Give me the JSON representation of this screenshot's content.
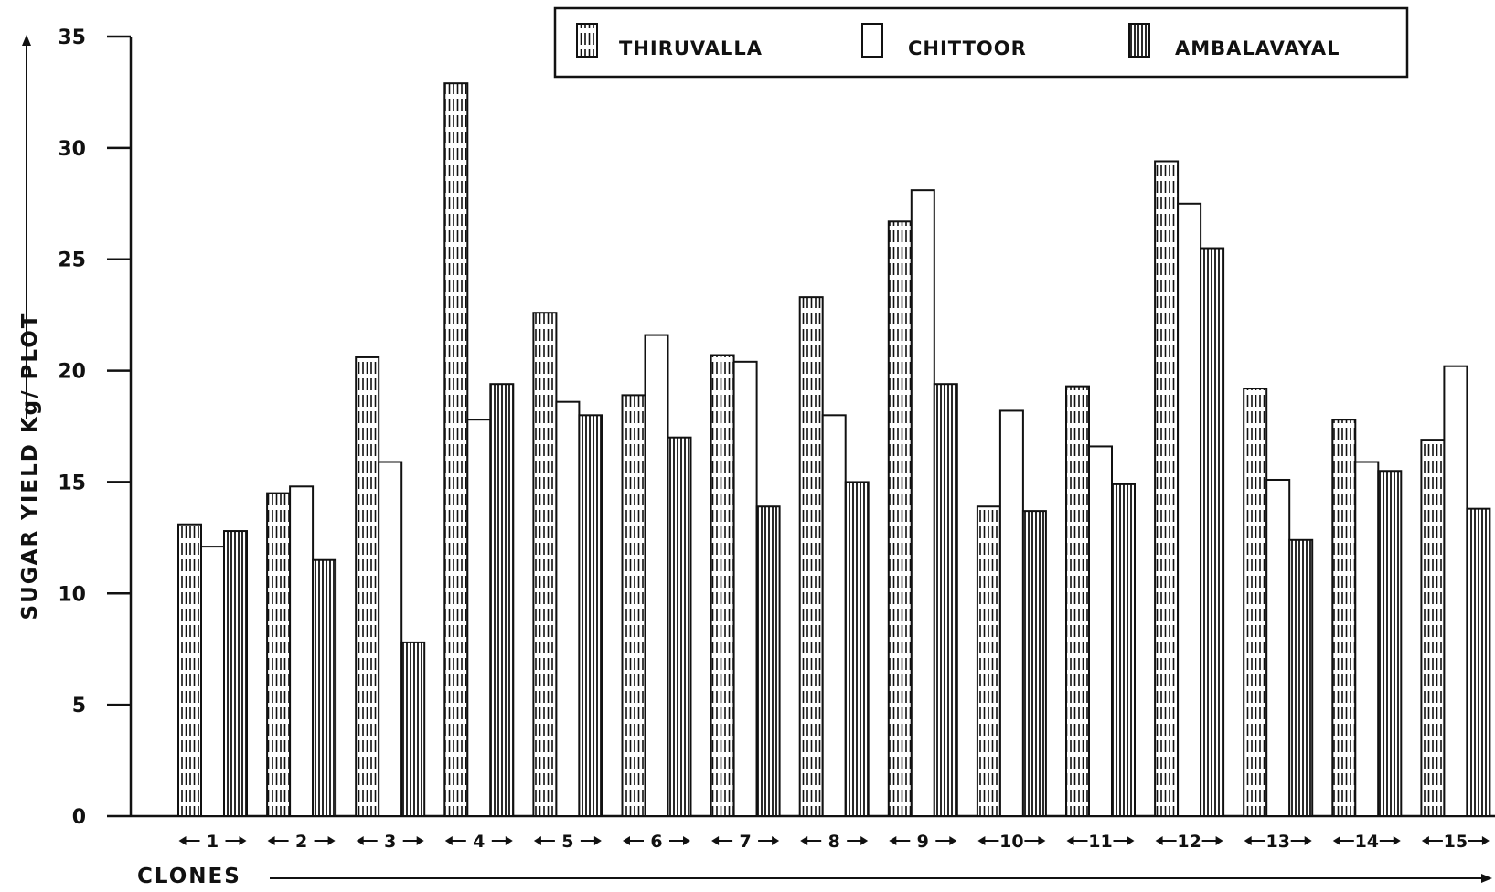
{
  "chart_data": {
    "type": "bar",
    "title": "",
    "ylabel": "SUGAR YIELD Kg/ PLOT",
    "xlabel": "CLONES",
    "ylim": [
      0,
      35
    ],
    "yticks": [
      "0",
      "5",
      "10",
      "15",
      "20",
      "25",
      "30",
      "35"
    ],
    "categories": [
      "1",
      "2",
      "3",
      "4",
      "5",
      "6",
      "7",
      "8",
      "9",
      "10",
      "11",
      "12",
      "13",
      "14",
      "15"
    ],
    "legend_position": "top-right",
    "grid": false,
    "series": [
      {
        "name": "THIRUVALLA",
        "pattern": "dashed-vertical-lines",
        "values": [
          13.1,
          14.5,
          20.6,
          32.9,
          22.6,
          18.9,
          20.7,
          23.3,
          26.7,
          13.9,
          19.3,
          29.4,
          19.2,
          17.8,
          16.9
        ]
      },
      {
        "name": "CHITTOOR",
        "pattern": "blank",
        "values": [
          12.1,
          14.8,
          15.9,
          17.8,
          18.6,
          21.6,
          20.4,
          18.0,
          28.1,
          18.2,
          16.6,
          27.5,
          15.1,
          15.9,
          20.2
        ]
      },
      {
        "name": "AMBALAVAYAL",
        "pattern": "solid-vertical-lines",
        "values": [
          12.8,
          11.5,
          7.8,
          19.4,
          18.0,
          17.0,
          13.9,
          15.0,
          19.4,
          13.7,
          14.9,
          25.5,
          12.4,
          15.5,
          13.8
        ]
      }
    ]
  }
}
